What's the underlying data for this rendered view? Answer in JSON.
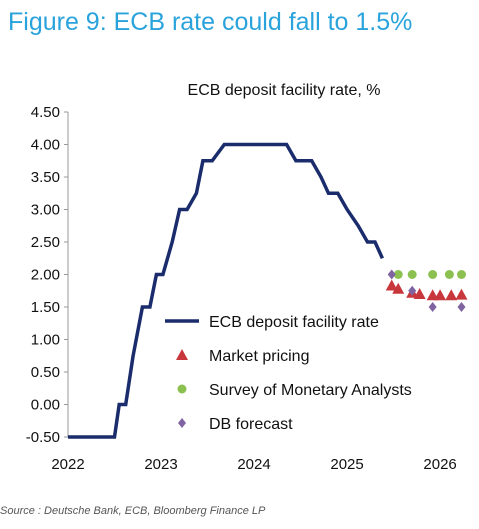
{
  "figure_title": "Figure 9: ECB rate could fall to 1.5%",
  "source": "Source : Deutsche Bank, ECB, Bloomberg Finance LP",
  "chart_data": {
    "type": "line",
    "title": "ECB deposit facility rate, %",
    "xlabel": "",
    "ylabel": "",
    "xlim": [
      2022.0,
      2026.3
    ],
    "ylim": [
      -0.5,
      4.5
    ],
    "y_ticks": [
      "4.50",
      "4.00",
      "3.50",
      "3.00",
      "2.50",
      "2.00",
      "1.50",
      "1.00",
      "0.50",
      "0.00",
      "-0.50"
    ],
    "y_tick_values": [
      4.5,
      4.0,
      3.5,
      3.0,
      2.5,
      2.0,
      1.5,
      1.0,
      0.5,
      0.0,
      -0.5
    ],
    "x_ticks": [
      "2022",
      "2023",
      "2024",
      "2025",
      "2026"
    ],
    "x_tick_values": [
      2022,
      2023,
      2024,
      2025,
      2026
    ],
    "grid": false,
    "legend_position": "bottom-right",
    "colors": {
      "rate": "#1a2c6b",
      "market": "#c8373c",
      "survey": "#8cc152",
      "db": "#8064a2"
    },
    "series": [
      {
        "name": "ECB deposit facility rate",
        "kind": "step-line",
        "points": [
          [
            2022.0,
            -0.5
          ],
          [
            2022.5,
            -0.5
          ],
          [
            2022.55,
            0.0
          ],
          [
            2022.62,
            0.0
          ],
          [
            2022.7,
            0.75
          ],
          [
            2022.8,
            1.5
          ],
          [
            2022.88,
            1.5
          ],
          [
            2022.95,
            2.0
          ],
          [
            2023.02,
            2.0
          ],
          [
            2023.12,
            2.5
          ],
          [
            2023.2,
            3.0
          ],
          [
            2023.28,
            3.0
          ],
          [
            2023.38,
            3.25
          ],
          [
            2023.45,
            3.75
          ],
          [
            2023.55,
            3.75
          ],
          [
            2023.68,
            4.0
          ],
          [
            2024.35,
            4.0
          ],
          [
            2024.45,
            3.75
          ],
          [
            2024.62,
            3.75
          ],
          [
            2024.72,
            3.5
          ],
          [
            2024.8,
            3.25
          ],
          [
            2024.9,
            3.25
          ],
          [
            2025.0,
            3.0
          ],
          [
            2025.12,
            2.75
          ],
          [
            2025.22,
            2.5
          ],
          [
            2025.3,
            2.5
          ],
          [
            2025.38,
            2.25
          ]
        ]
      },
      {
        "name": "Market pricing",
        "kind": "triangle",
        "points": [
          [
            2025.48,
            1.83
          ],
          [
            2025.55,
            1.78
          ],
          [
            2025.7,
            1.72
          ],
          [
            2025.78,
            1.7
          ],
          [
            2025.92,
            1.68
          ],
          [
            2026.0,
            1.68
          ],
          [
            2026.12,
            1.68
          ],
          [
            2026.23,
            1.69
          ]
        ]
      },
      {
        "name": "Survey of Monetary Analysts",
        "kind": "circle",
        "points": [
          [
            2025.55,
            2.0
          ],
          [
            2025.7,
            2.0
          ],
          [
            2025.92,
            2.0
          ],
          [
            2026.1,
            2.0
          ],
          [
            2026.23,
            2.0
          ]
        ]
      },
      {
        "name": "DB forecast",
        "kind": "diamond",
        "points": [
          [
            2025.48,
            2.0
          ],
          [
            2025.7,
            1.75
          ],
          [
            2025.92,
            1.5
          ],
          [
            2026.23,
            1.5
          ]
        ]
      }
    ]
  }
}
